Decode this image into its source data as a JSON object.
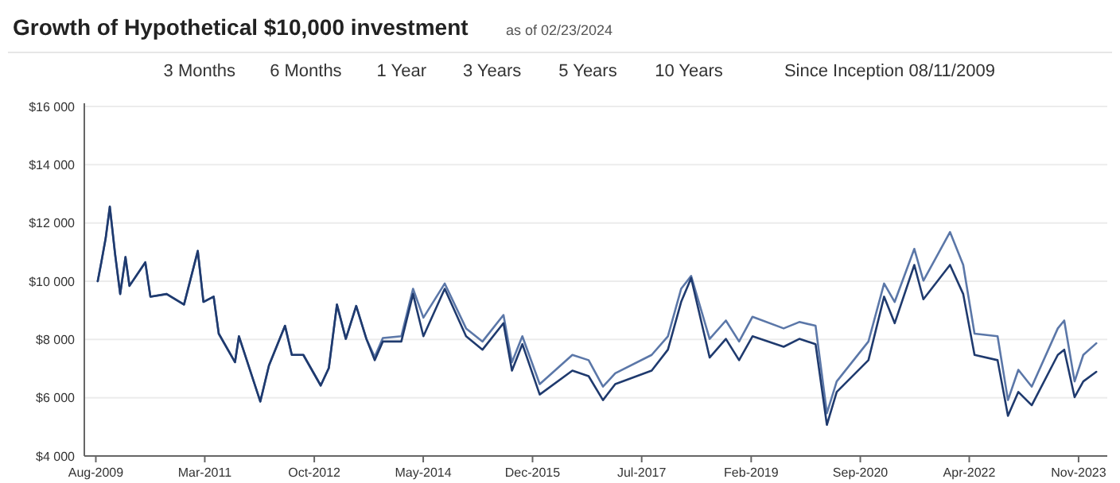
{
  "chart_data": {
    "type": "line",
    "title": "Growth of Hypothetical $10,000 investment",
    "subtitle": "as of 02/23/2024",
    "annotations": [
      "3 Months",
      "6 Months",
      "1 Year",
      "3 Years",
      "5 Years",
      "10 Years",
      "Since Inception 08/11/2009"
    ],
    "x": [
      "2009-08-11",
      "2009-08-30",
      "2009-09-22",
      "2009-10-14",
      "2009-11-11",
      "2009-12-08",
      "2010-01-05",
      "2010-01-26",
      "2010-04-20",
      "2010-05-17",
      "2010-08-11",
      "2010-11-11",
      "2011-01-23",
      "2011-02-22",
      "2011-04-17",
      "2011-05-14",
      "2011-08-08",
      "2011-08-29",
      "2011-12-20",
      "2012-02-04",
      "2012-04-29",
      "2012-06-04",
      "2012-08-04",
      "2012-11-04",
      "2012-12-17",
      "2013-01-29",
      "2013-03-17",
      "2013-05-11",
      "2013-07-04",
      "2013-08-17",
      "2013-09-29",
      "2014-01-05",
      "2014-03-08",
      "2014-05-02",
      "2014-08-23",
      "2014-12-14",
      "2015-03-11",
      "2015-06-30",
      "2015-08-14",
      "2015-10-08",
      "2016-01-08",
      "2016-06-29",
      "2016-09-23",
      "2016-12-08",
      "2017-02-11",
      "2017-08-23",
      "2017-11-17",
      "2018-01-26",
      "2018-03-20",
      "2018-06-26",
      "2018-09-20",
      "2018-11-29",
      "2019-02-08",
      "2019-07-23",
      "2019-10-14",
      "2020-01-08",
      "2020-03-08",
      "2020-04-29",
      "2020-10-14",
      "2021-01-05",
      "2021-03-02",
      "2021-06-14",
      "2021-08-01",
      "2021-12-20",
      "2022-02-28",
      "2022-04-29",
      "2022-08-29",
      "2022-10-23",
      "2022-12-17",
      "2023-02-26",
      "2023-07-14",
      "2023-08-17",
      "2023-10-11",
      "2023-11-26",
      "2024-02-03"
    ],
    "series": [
      {
        "color": "#5b77a8",
        "values": [
          10000,
          10650,
          11470,
          12560,
          10930,
          9560,
          10830,
          9840,
          10650,
          9470,
          9560,
          9200,
          11040,
          9290,
          9470,
          8200,
          7220,
          8110,
          5870,
          7110,
          8470,
          7470,
          7470,
          6420,
          7020,
          9200,
          8020,
          9150,
          8020,
          7400,
          8050,
          8110,
          9740,
          8750,
          9920,
          8380,
          7930,
          8840,
          7220,
          8110,
          6470,
          7470,
          7290,
          6380,
          6840,
          7470,
          8110,
          9740,
          10180,
          8020,
          8650,
          7930,
          8780,
          8380,
          8600,
          8470,
          5470,
          6560,
          7930,
          9920,
          9290,
          11110,
          10020,
          11690,
          10560,
          8200,
          8110,
          5920,
          6960,
          6380,
          8380,
          8650,
          6560,
          7470,
          7870
        ]
      },
      {
        "color": "#1f3a6e",
        "values": [
          10000,
          10650,
          11470,
          12560,
          10930,
          9560,
          10830,
          9840,
          10650,
          9470,
          9560,
          9200,
          11040,
          9290,
          9470,
          8200,
          7220,
          8110,
          5870,
          7110,
          8470,
          7470,
          7470,
          6420,
          7020,
          9200,
          8020,
          9150,
          8020,
          7290,
          7930,
          7930,
          9560,
          8110,
          9740,
          8110,
          7650,
          8560,
          6930,
          7840,
          6110,
          6930,
          6740,
          5920,
          6470,
          6930,
          7650,
          9290,
          10110,
          7380,
          8020,
          7290,
          8110,
          7750,
          8020,
          7840,
          5070,
          6200,
          7290,
          9470,
          8560,
          10560,
          9380,
          10560,
          9560,
          7470,
          7290,
          5380,
          6200,
          5740,
          7470,
          7650,
          6020,
          6560,
          6890
        ]
      }
    ],
    "xlim": [
      "2009-06-01",
      "2024-04-01"
    ],
    "xticks": [
      {
        "value": "2009-08",
        "label": "Aug-2009"
      },
      {
        "value": "2011-03",
        "label": "Mar-2011"
      },
      {
        "value": "2012-10",
        "label": "Oct-2012"
      },
      {
        "value": "2014-05",
        "label": "May-2014"
      },
      {
        "value": "2015-12",
        "label": "Dec-2015"
      },
      {
        "value": "2017-07",
        "label": "Jul-2017"
      },
      {
        "value": "2019-02",
        "label": "Feb-2019"
      },
      {
        "value": "2020-09",
        "label": "Sep-2020"
      },
      {
        "value": "2022-04",
        "label": "Apr-2022"
      },
      {
        "value": "2023-11",
        "label": "Nov-2023"
      }
    ],
    "ylim": [
      4000,
      16000
    ],
    "yticks": [
      {
        "value": 4000,
        "label": "$4 000"
      },
      {
        "value": 6000,
        "label": "$6 000"
      },
      {
        "value": 8000,
        "label": "$8 000"
      },
      {
        "value": 10000,
        "label": "$10 000"
      },
      {
        "value": 12000,
        "label": "$12 000"
      },
      {
        "value": 14000,
        "label": "$14 000"
      },
      {
        "value": 16000,
        "label": "$16 000"
      }
    ],
    "grid": "y",
    "line_style": "solid"
  }
}
